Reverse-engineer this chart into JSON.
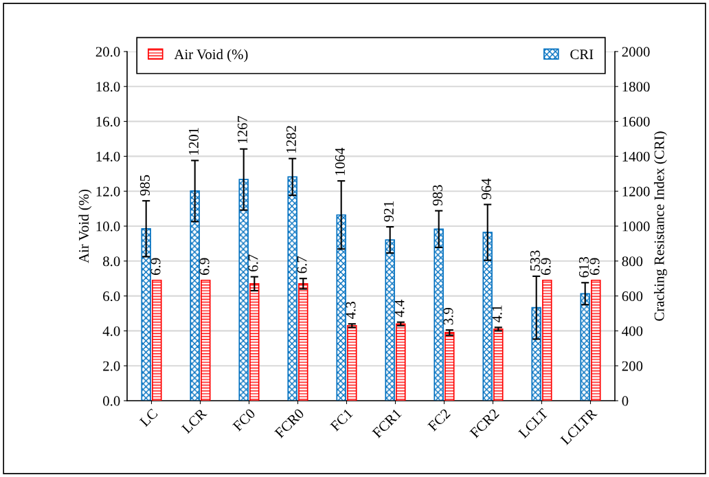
{
  "chart_data": {
    "type": "bar",
    "ylabel": "Air Void (%)",
    "y2label": "Cracking Resistance Index (CRI)",
    "categories": [
      "LC",
      "LCR",
      "FC0",
      "FCR0",
      "FC1",
      "FCR1",
      "FC2",
      "FCR2",
      "LCLT",
      "LCLTR"
    ],
    "series": [
      {
        "name": "CRI",
        "color": "#0070c0",
        "axis": "y2",
        "values": [
          985,
          1201,
          1267,
          1282,
          1064,
          921,
          983,
          964,
          533,
          613
        ],
        "errors": [
          160,
          175,
          175,
          105,
          195,
          75,
          105,
          160,
          180,
          63
        ]
      },
      {
        "name": "Air Void (%)",
        "color": "#ff0000",
        "axis": "y",
        "values": [
          6.9,
          6.9,
          6.7,
          6.7,
          4.3,
          4.4,
          3.9,
          4.1,
          6.9,
          6.9
        ],
        "errors": [
          null,
          null,
          0.4,
          0.3,
          0.1,
          0.1,
          0.15,
          0.1,
          null,
          null
        ]
      }
    ],
    "ylim": [
      0,
      20
    ],
    "yticks": [
      {
        "value": 0,
        "label": "0.0"
      },
      {
        "value": 2,
        "label": "2.0"
      },
      {
        "value": 4,
        "label": "4.0"
      },
      {
        "value": 6,
        "label": "6.0"
      },
      {
        "value": 8,
        "label": "8.0"
      },
      {
        "value": 10,
        "label": "10.0"
      },
      {
        "value": 12,
        "label": "12.0"
      },
      {
        "value": 14,
        "label": "14.0"
      },
      {
        "value": 16,
        "label": "16.0"
      },
      {
        "value": 18,
        "label": "18.0"
      },
      {
        "value": 20,
        "label": "20.0"
      }
    ],
    "y2lim": [
      0,
      2000
    ],
    "y2ticks": [
      0,
      200,
      400,
      600,
      800,
      1000,
      1200,
      1400,
      1600,
      1800,
      2000
    ],
    "data_labels": true,
    "grid": "y",
    "legend": "top"
  }
}
